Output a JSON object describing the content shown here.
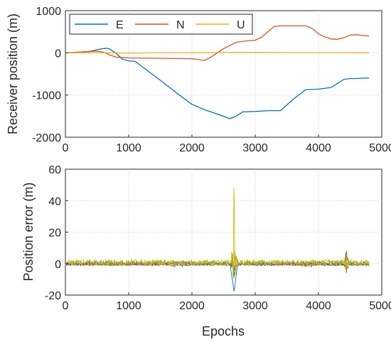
{
  "chart_data": [
    {
      "type": "line",
      "ylabel": "Receiver position (m)",
      "xlabel": "",
      "xlim": [
        0,
        5000
      ],
      "ylim": [
        -2000,
        1000
      ],
      "xticks": [
        0,
        1000,
        2000,
        3000,
        4000,
        5000
      ],
      "yticks": [
        -2000,
        -1000,
        0,
        1000
      ],
      "grid": true,
      "legend": {
        "placement": "top-left",
        "orientation": "horizontal"
      },
      "series": [
        {
          "name": "E",
          "color": "#0072BD",
          "x": [
            0,
            200,
            400,
            550,
            650,
            700,
            800,
            900,
            1000,
            1100,
            1500,
            1800,
            2000,
            2200,
            2400,
            2600,
            2700,
            2800,
            3000,
            3200,
            3400,
            3600,
            3800,
            4000,
            4200,
            4400,
            4500,
            4600,
            4700,
            4800
          ],
          "y": [
            0,
            10,
            40,
            90,
            110,
            90,
            -10,
            -150,
            -190,
            -200,
            -650,
            -1000,
            -1220,
            -1350,
            -1450,
            -1560,
            -1500,
            -1400,
            -1390,
            -1370,
            -1370,
            -1100,
            -870,
            -860,
            -820,
            -630,
            -610,
            -610,
            -600,
            -600
          ]
        },
        {
          "name": "N",
          "color": "#D95319",
          "x": [
            0,
            500,
            600,
            700,
            800,
            1000,
            1500,
            2000,
            2200,
            2300,
            2500,
            2700,
            2900,
            3000,
            3100,
            3200,
            3300,
            3400,
            3600,
            3800,
            3900,
            4000,
            4100,
            4200,
            4300,
            4400,
            4500,
            4600,
            4700,
            4800
          ],
          "y": [
            0,
            40,
            20,
            -50,
            -100,
            -120,
            -130,
            -140,
            -180,
            -100,
            100,
            250,
            290,
            300,
            370,
            500,
            630,
            640,
            640,
            640,
            580,
            450,
            380,
            330,
            320,
            360,
            420,
            430,
            410,
            400
          ]
        },
        {
          "name": "U",
          "color": "#EDB120",
          "x": [
            0,
            500,
            1000,
            2000,
            3000,
            4000,
            4800
          ],
          "y": [
            0,
            2,
            -5,
            5,
            10,
            5,
            2
          ]
        }
      ]
    },
    {
      "type": "line",
      "ylabel": "Position error (m)",
      "xlabel": "Epochs",
      "xlim": [
        0,
        5000
      ],
      "ylim": [
        -20,
        60
      ],
      "xticks": [
        0,
        1000,
        2000,
        3000,
        4000,
        5000
      ],
      "yticks": [
        -20,
        0,
        20,
        40,
        60
      ],
      "grid": true,
      "series_colors": [
        "#0072BD",
        "#D95319",
        "#EDB120",
        "#7E2F8E",
        "#77AC30",
        "#BFBF00"
      ],
      "notes": "Errors stay near 0 except a spike near epoch 2660 (up to ~48 m, down to ~-18 m) and a burst near epoch 4440 (~+12 m / -6 m)"
    }
  ]
}
